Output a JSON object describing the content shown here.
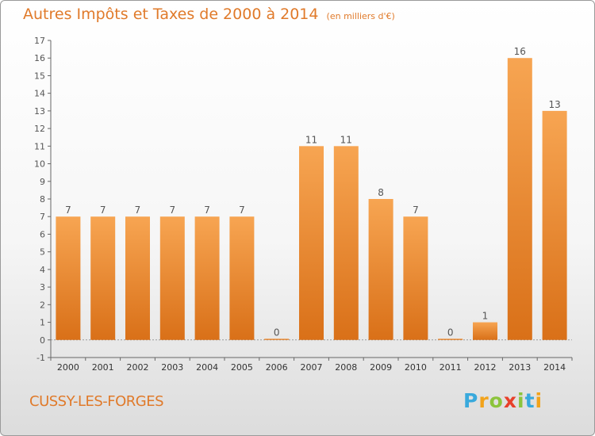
{
  "chart_data": {
    "type": "bar",
    "title": "Autres Impôts et Taxes de 2000 à 2014",
    "subtitle": "(en milliers d'€)",
    "categories": [
      "2000",
      "2001",
      "2002",
      "2003",
      "2004",
      "2005",
      "2006",
      "2007",
      "2008",
      "2009",
      "2010",
      "2011",
      "2012",
      "2013",
      "2014"
    ],
    "values": [
      7,
      7,
      7,
      7,
      7,
      7,
      0,
      11,
      11,
      8,
      7,
      0,
      1,
      16,
      13
    ],
    "data_labels": [
      "7",
      "7",
      "7",
      "7",
      "7",
      "7",
      "0",
      "11",
      "11",
      "8",
      "7",
      "0",
      "1",
      "16",
      "13"
    ],
    "ylim": [
      -1,
      17
    ],
    "yticks": [
      -1,
      0,
      1,
      2,
      3,
      4,
      5,
      6,
      7,
      8,
      9,
      10,
      11,
      12,
      13,
      14,
      15,
      16,
      17
    ],
    "xlabel": "",
    "ylabel": "",
    "grid": false,
    "bar_color": "#f0963c"
  },
  "place_name": "CUSSY-LES-FORGES",
  "logo": {
    "letters": [
      "P",
      "r",
      "o",
      "x",
      "i",
      "t",
      "i"
    ],
    "colors": [
      "#39a9dc",
      "#f2a31b",
      "#8cc43c",
      "#e8402a",
      "#8cc43c",
      "#39a9dc",
      "#f2a31b"
    ]
  },
  "colors": {
    "title": "#e07a2a",
    "axis": "#555555"
  }
}
